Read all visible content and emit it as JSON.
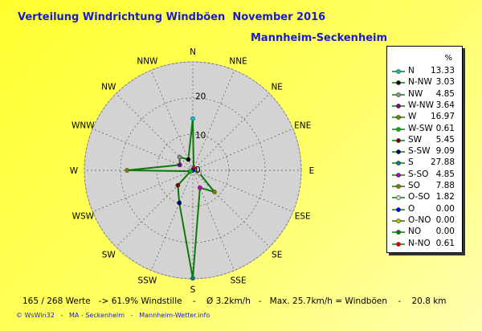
{
  "header": {
    "title": "Verteilung Windrichtung Windböen  November 2016",
    "station": "Mannheim-Seckenheim"
  },
  "legend": {
    "unit": "%",
    "items": [
      {
        "label": "N",
        "value": "13.33",
        "color": "#00c8c8"
      },
      {
        "label": "N-NW",
        "value": "3.03",
        "color": "#000000"
      },
      {
        "label": "NW",
        "value": "4.85",
        "color": "#909090"
      },
      {
        "label": "W-NW",
        "value": "3.64",
        "color": "#800080"
      },
      {
        "label": "W",
        "value": "16.97",
        "color": "#808000"
      },
      {
        "label": "W-SW",
        "value": "0.61",
        "color": "#00c000"
      },
      {
        "label": "SW",
        "value": "5.45",
        "color": "#800000"
      },
      {
        "label": "S-SW",
        "value": "9.09",
        "color": "#000080"
      },
      {
        "label": "S",
        "value": "27.88",
        "color": "#008080"
      },
      {
        "label": "S-SO",
        "value": "4.85",
        "color": "#c000c0"
      },
      {
        "label": "SO",
        "value": "7.88",
        "color": "#808000"
      },
      {
        "label": "O-SO",
        "value": "1.82",
        "color": "#d0d0d0"
      },
      {
        "label": "O",
        "value": "0.00",
        "color": "#0000ff"
      },
      {
        "label": "O-NO",
        "value": "0.00",
        "color": "#c0c000"
      },
      {
        "label": "NO",
        "value": "0.00",
        "color": "#008000"
      },
      {
        "label": "N-NO",
        "value": "0.61",
        "color": "#ff0000"
      }
    ]
  },
  "footer": {
    "stats": "165 / 268 Werte   -> 61.9% Windstille    -    Ø 3.2km/h   -   Max. 25.7km/h = Windböen    -    20.8 km",
    "credit": "© WsWin32   -   MA - Seckenheim   -   Mannheim-Wetter.info"
  },
  "chart_data": {
    "type": "radar",
    "directions": [
      "N",
      "NNE",
      "NE",
      "ENE",
      "E",
      "ESE",
      "SE",
      "SSE",
      "S",
      "SSW",
      "SW",
      "WSW",
      "W",
      "WNW",
      "NW",
      "NNW"
    ],
    "series": [
      {
        "values": [
          13.33,
          0.61,
          0,
          0,
          0,
          1.82,
          7.88,
          4.85,
          27.88,
          9.09,
          5.45,
          0.61,
          16.97,
          3.64,
          4.85,
          3.03
        ]
      }
    ],
    "rlim": [
      0,
      28
    ],
    "ring_labels": [
      "10",
      "20"
    ],
    "center_label": "0",
    "line_color": "#0a7a0a",
    "background": "#d3d3d3",
    "grid": true
  }
}
